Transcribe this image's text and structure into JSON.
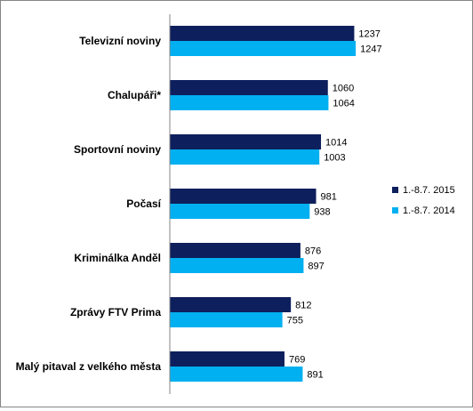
{
  "chart_data": {
    "type": "bar",
    "orientation": "horizontal",
    "categories": [
      "Televizní noviny",
      "Chalupáři*",
      "Sportovní noviny",
      "Počasí",
      "Kriminálka Anděl",
      "Zprávy FTV Prima",
      "Malý pitaval z velkého města"
    ],
    "series": [
      {
        "name": "1.-8.7. 2015",
        "color": "#0d1f5c",
        "values": [
          1237,
          1060,
          1014,
          981,
          876,
          812,
          769
        ]
      },
      {
        "name": "1.-8.7. 2014",
        "color": "#00b0f0",
        "values": [
          1247,
          1064,
          1003,
          938,
          897,
          755,
          891
        ]
      }
    ],
    "xlim": [
      0,
      1300
    ],
    "grid": false,
    "legend_position": "right"
  }
}
